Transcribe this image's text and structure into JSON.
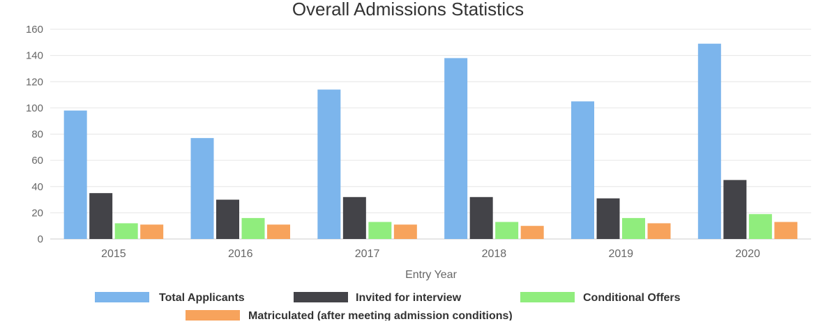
{
  "chart_data": {
    "type": "bar",
    "title": "Overall Admissions Statistics",
    "xlabel": "Entry Year",
    "ylabel": "",
    "ylim": [
      0,
      160
    ],
    "yticks": [
      0,
      20,
      40,
      60,
      80,
      100,
      120,
      140,
      160
    ],
    "grid": true,
    "legend_position": "bottom",
    "categories": [
      "2015",
      "2016",
      "2017",
      "2018",
      "2019",
      "2020"
    ],
    "series": [
      {
        "name": "Total Applicants",
        "color": "#7cb5ec",
        "values": [
          98,
          77,
          114,
          138,
          105,
          149
        ]
      },
      {
        "name": "Invited for interview",
        "color": "#434348",
        "values": [
          35,
          30,
          32,
          32,
          31,
          45
        ]
      },
      {
        "name": "Conditional Offers",
        "color": "#90ed7d",
        "values": [
          12,
          16,
          13,
          13,
          16,
          19
        ]
      },
      {
        "name": "Matriculated (after meeting admission conditions)",
        "color": "#f7a35c",
        "values": [
          11,
          11,
          11,
          10,
          12,
          13
        ]
      }
    ]
  }
}
